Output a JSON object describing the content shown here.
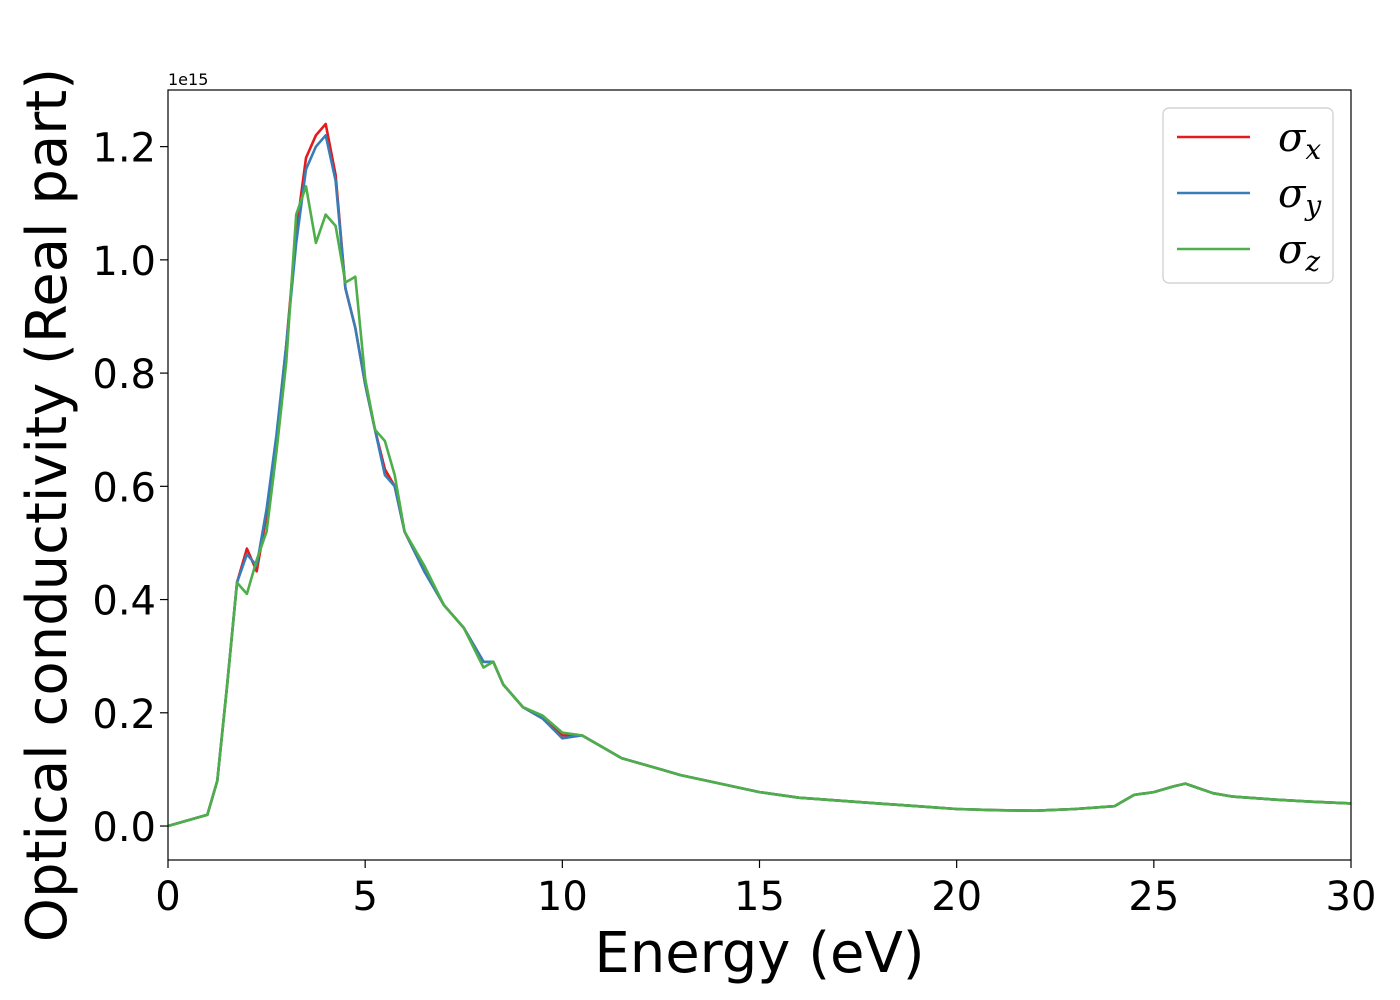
{
  "chart_data": {
    "type": "line",
    "title": "",
    "xlabel": "Energy (eV)",
    "ylabel": "Optical conductivity (Real part)",
    "y_offset_label": "1e15",
    "xlim": [
      0,
      30
    ],
    "ylim": [
      -0.06,
      1.3
    ],
    "xticks": [
      0,
      5,
      10,
      15,
      20,
      25,
      30
    ],
    "xtick_labels": [
      "0",
      "5",
      "10",
      "15",
      "20",
      "25",
      "30"
    ],
    "yticks": [
      0.0,
      0.2,
      0.4,
      0.6,
      0.8,
      1.0,
      1.2
    ],
    "ytick_labels": [
      "0.0",
      "0.2",
      "0.4",
      "0.6",
      "0.8",
      "1.0",
      "1.2"
    ],
    "grid": false,
    "legend": {
      "placement": "top-right"
    },
    "series": [
      {
        "name": "σx",
        "symbol": "σ",
        "subscript": "x",
        "color": "#e41a1c",
        "x": [
          0,
          0.5,
          1.0,
          1.25,
          1.5,
          1.75,
          2.0,
          2.25,
          2.5,
          2.75,
          3.0,
          3.25,
          3.5,
          3.75,
          4.0,
          4.25,
          4.5,
          4.75,
          5.0,
          5.25,
          5.5,
          5.75,
          6.0,
          6.5,
          7.0,
          7.5,
          8.0,
          8.25,
          8.5,
          9.0,
          9.5,
          10.0,
          10.5,
          11.0,
          11.5,
          12.0,
          12.5,
          13.0,
          14.0,
          15.0,
          16.0,
          17.0,
          18.0,
          19.0,
          20.0,
          21.0,
          22.0,
          23.0,
          24.0,
          24.5,
          25.0,
          25.5,
          25.8,
          26.0,
          26.5,
          27.0,
          28.0,
          29.0,
          30.0
        ],
        "y": [
          0.0,
          0.01,
          0.02,
          0.08,
          0.25,
          0.43,
          0.49,
          0.45,
          0.55,
          0.68,
          0.85,
          1.05,
          1.18,
          1.22,
          1.24,
          1.15,
          0.95,
          0.88,
          0.78,
          0.7,
          0.63,
          0.6,
          0.52,
          0.45,
          0.39,
          0.35,
          0.29,
          0.29,
          0.25,
          0.21,
          0.19,
          0.16,
          0.16,
          0.14,
          0.12,
          0.11,
          0.1,
          0.09,
          0.075,
          0.06,
          0.05,
          0.045,
          0.04,
          0.035,
          0.03,
          0.028,
          0.027,
          0.03,
          0.035,
          0.055,
          0.06,
          0.07,
          0.075,
          0.07,
          0.058,
          0.052,
          0.047,
          0.043,
          0.04
        ]
      },
      {
        "name": "σy",
        "symbol": "σ",
        "subscript": "y",
        "color": "#377eb8",
        "x": [
          0,
          0.5,
          1.0,
          1.25,
          1.5,
          1.75,
          2.0,
          2.25,
          2.5,
          2.75,
          3.0,
          3.25,
          3.5,
          3.75,
          4.0,
          4.25,
          4.5,
          4.75,
          5.0,
          5.25,
          5.5,
          5.75,
          6.0,
          6.5,
          7.0,
          7.5,
          8.0,
          8.25,
          8.5,
          9.0,
          9.5,
          10.0,
          10.5,
          11.0,
          11.5,
          12.0,
          12.5,
          13.0,
          14.0,
          15.0,
          16.0,
          17.0,
          18.0,
          19.0,
          20.0,
          21.0,
          22.0,
          23.0,
          24.0,
          24.5,
          25.0,
          25.5,
          25.8,
          26.0,
          26.5,
          27.0,
          28.0,
          29.0,
          30.0
        ],
        "y": [
          0.0,
          0.01,
          0.02,
          0.08,
          0.25,
          0.43,
          0.48,
          0.46,
          0.56,
          0.69,
          0.85,
          1.03,
          1.16,
          1.2,
          1.22,
          1.14,
          0.95,
          0.88,
          0.78,
          0.7,
          0.62,
          0.6,
          0.52,
          0.45,
          0.39,
          0.35,
          0.29,
          0.29,
          0.25,
          0.21,
          0.19,
          0.155,
          0.16,
          0.14,
          0.12,
          0.11,
          0.1,
          0.09,
          0.075,
          0.06,
          0.05,
          0.045,
          0.04,
          0.035,
          0.03,
          0.028,
          0.027,
          0.03,
          0.035,
          0.055,
          0.06,
          0.07,
          0.075,
          0.07,
          0.058,
          0.052,
          0.047,
          0.043,
          0.04
        ]
      },
      {
        "name": "σz",
        "symbol": "σ",
        "subscript": "z",
        "color": "#4daf4a",
        "x": [
          0,
          0.5,
          1.0,
          1.25,
          1.5,
          1.75,
          2.0,
          2.25,
          2.5,
          2.75,
          3.0,
          3.25,
          3.5,
          3.75,
          4.0,
          4.25,
          4.5,
          4.75,
          5.0,
          5.25,
          5.5,
          5.75,
          6.0,
          6.5,
          7.0,
          7.5,
          8.0,
          8.25,
          8.5,
          9.0,
          9.5,
          10.0,
          10.5,
          11.0,
          11.5,
          12.0,
          12.5,
          13.0,
          14.0,
          15.0,
          16.0,
          17.0,
          18.0,
          19.0,
          20.0,
          21.0,
          22.0,
          23.0,
          24.0,
          24.5,
          25.0,
          25.5,
          25.8,
          26.0,
          26.5,
          27.0,
          28.0,
          29.0,
          30.0
        ],
        "y": [
          0.0,
          0.01,
          0.02,
          0.08,
          0.25,
          0.43,
          0.41,
          0.47,
          0.52,
          0.66,
          0.82,
          1.08,
          1.13,
          1.03,
          1.08,
          1.06,
          0.96,
          0.97,
          0.79,
          0.7,
          0.68,
          0.62,
          0.52,
          0.46,
          0.39,
          0.35,
          0.28,
          0.29,
          0.25,
          0.21,
          0.195,
          0.165,
          0.16,
          0.14,
          0.12,
          0.11,
          0.1,
          0.09,
          0.075,
          0.06,
          0.05,
          0.045,
          0.04,
          0.035,
          0.03,
          0.028,
          0.027,
          0.03,
          0.035,
          0.055,
          0.06,
          0.07,
          0.075,
          0.07,
          0.058,
          0.052,
          0.047,
          0.043,
          0.04
        ]
      }
    ]
  }
}
